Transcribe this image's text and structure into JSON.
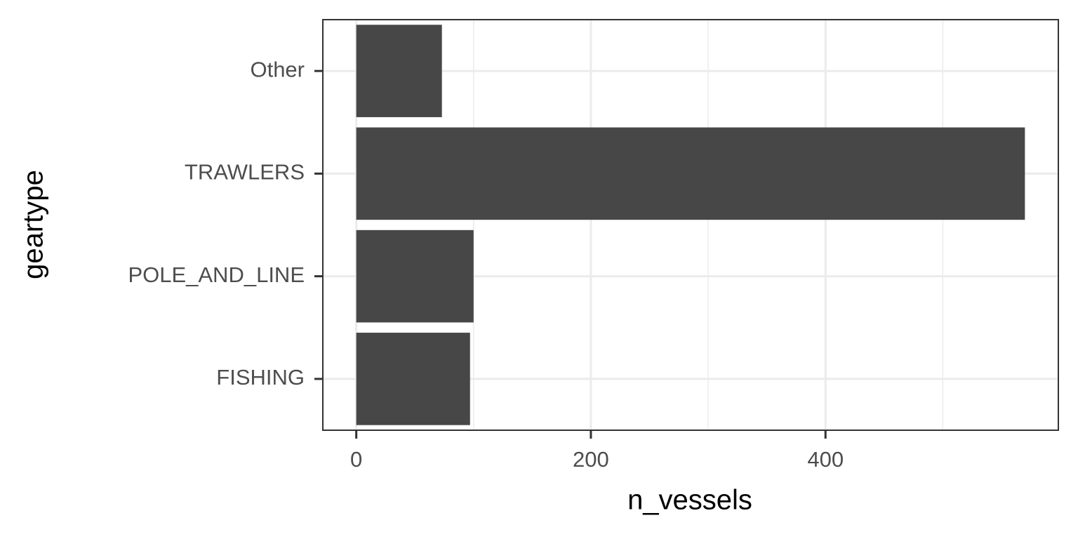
{
  "chart_data": {
    "type": "bar",
    "orientation": "horizontal",
    "x_label": "n_vessels",
    "y_label": "geartype",
    "categories": [
      "FISHING",
      "POLE_AND_LINE",
      "TRAWLERS",
      "Other"
    ],
    "values": [
      97,
      100,
      570,
      73
    ],
    "color": "#474747",
    "xlim": [
      -28.5,
      598.5
    ],
    "xticks": [
      0,
      200,
      400
    ],
    "xminor": [
      100,
      300,
      500
    ],
    "grid": true
  }
}
